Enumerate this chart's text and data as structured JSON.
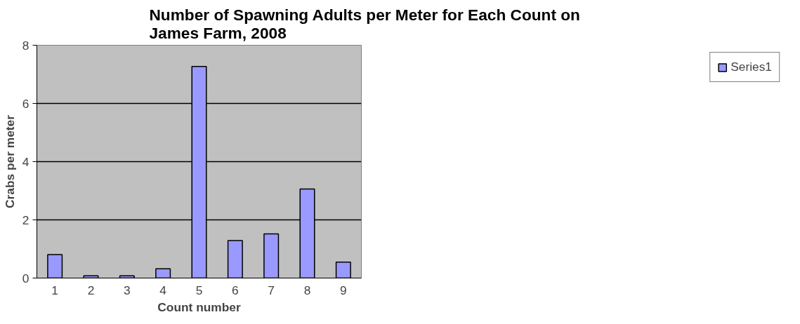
{
  "chart_data": {
    "type": "bar",
    "title": "Number of Spawning Adults per Meter for Each Count  on James Farm, 2008",
    "xlabel": "Count number",
    "ylabel": "Crabs per meter",
    "categories": [
      "1",
      "2",
      "3",
      "4",
      "5",
      "6",
      "7",
      "8",
      "9"
    ],
    "series": [
      {
        "name": "Series1",
        "color": "#9999ff",
        "values": [
          0.81,
          0.08,
          0.08,
          0.32,
          7.27,
          1.29,
          1.52,
          3.06,
          0.55
        ]
      }
    ],
    "ylim": [
      0,
      8
    ],
    "yticks": [
      0,
      2,
      4,
      6,
      8
    ],
    "grid": "y",
    "legend": "right"
  }
}
